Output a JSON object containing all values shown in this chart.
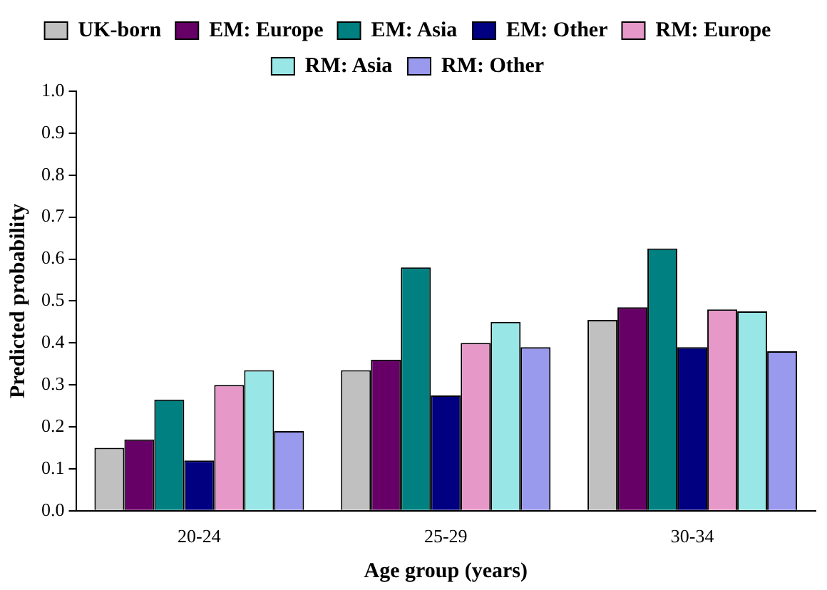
{
  "chart_data": {
    "type": "bar",
    "xlabel": "Age group (years)",
    "ylabel": "Predicted probability",
    "categories": [
      "20-24",
      "25-29",
      "30-34"
    ],
    "series": [
      {
        "name": "UK-born",
        "color": "#c0c0c0",
        "values": [
          0.15,
          0.335,
          0.455
        ]
      },
      {
        "name": "EM: Europe",
        "color": "#660066",
        "values": [
          0.17,
          0.36,
          0.485
        ]
      },
      {
        "name": "EM: Asia",
        "color": "#008080",
        "values": [
          0.265,
          0.58,
          0.625
        ]
      },
      {
        "name": "EM: Other",
        "color": "#000080",
        "values": [
          0.12,
          0.275,
          0.39
        ]
      },
      {
        "name": "RM: Europe",
        "color": "#e699c8",
        "values": [
          0.3,
          0.4,
          0.48
        ]
      },
      {
        "name": "RM: Asia",
        "color": "#99e6e6",
        "values": [
          0.335,
          0.45,
          0.475
        ]
      },
      {
        "name": "RM: Other",
        "color": "#9999ee",
        "values": [
          0.19,
          0.39,
          0.38
        ]
      }
    ],
    "ylim": [
      0,
      1
    ],
    "yticks": [
      {
        "value": 0,
        "label": "0.0"
      },
      0.1,
      0.2,
      0.3,
      0.4,
      0.5,
      0.6,
      0.7,
      0.8,
      0.9,
      {
        "value": 1,
        "label": "1.0"
      }
    ],
    "grid": false,
    "legend": "top"
  }
}
